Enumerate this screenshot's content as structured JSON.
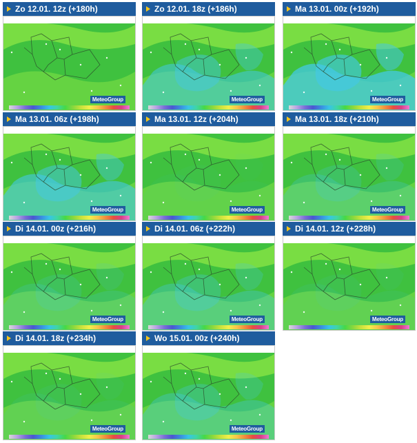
{
  "brand": "MeteoGroup",
  "colors": {
    "header_bg": "#1f5c9e",
    "header_text": "#ffffff",
    "arrow": "#f4c41a",
    "green_dark": "#3fc13f",
    "green_light": "#7fe044",
    "blue": "#44c8e6",
    "brand_bg": "#1f5c9e"
  },
  "tiles": [
    {
      "label": "Zo 12.01. 12z (+180h)",
      "cold": 0.0
    },
    {
      "label": "Zo 12.01. 18z (+186h)",
      "cold": 0.55
    },
    {
      "label": "Ma 13.01. 00z (+192h)",
      "cold": 0.75
    },
    {
      "label": "Ma 13.01. 06z (+198h)",
      "cold": 0.6
    },
    {
      "label": "Ma 13.01. 12z (+204h)",
      "cold": 0.05
    },
    {
      "label": "Ma 13.01. 18z (+210h)",
      "cold": 0.25
    },
    {
      "label": "Di 14.01. 00z (+216h)",
      "cold": 0.2
    },
    {
      "label": "Di 14.01. 06z (+222h)",
      "cold": 0.35
    },
    {
      "label": "Di 14.01. 12z (+228h)",
      "cold": 0.1
    },
    {
      "label": "Di 14.01. 18z (+234h)",
      "cold": 0.1
    },
    {
      "label": "Wo 15.01. 00z (+240h)",
      "cold": 0.35
    }
  ]
}
